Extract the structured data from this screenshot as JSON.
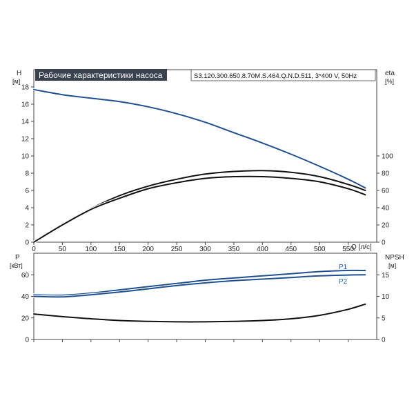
{
  "colors": {
    "curve_blue": "#1f4f8f",
    "curve_black": "#111111",
    "title_bg": "#3a4250",
    "frame": "#444444"
  },
  "chart_data": [
    {
      "type": "line",
      "title": "Рабочие характеристики насоса",
      "subtitle": "S3.120.300.650.8.70M.S.464.Q.N.D.511, 3*400 V, 50Hz",
      "xlabel": "Q [л/с]",
      "xlim": [
        0,
        600
      ],
      "x_ticks": [
        "0",
        "50",
        "100",
        "150",
        "200",
        "250",
        "300",
        "350",
        "400",
        "450",
        "500",
        "550"
      ],
      "ylabel_left": "H",
      "ylabel_left_unit": "[м]",
      "ylim_left": [
        0,
        20
      ],
      "y_ticks_left": [
        "0",
        "2",
        "4",
        "6",
        "8",
        "10",
        "12",
        "14",
        "16",
        "18"
      ],
      "ylabel_right": "eta",
      "ylabel_right_unit": "[%]",
      "ylim_right": [
        0,
        200
      ],
      "y_ticks_right": [
        "0",
        "20",
        "40",
        "60",
        "80",
        "100"
      ],
      "series": [
        {
          "axis": "left",
          "color": "#1f4f8f",
          "x": [
            0,
            50,
            100,
            150,
            200,
            250,
            300,
            350,
            400,
            450,
            500,
            550,
            580
          ],
          "values": [
            17.7,
            17.1,
            16.7,
            16.3,
            15.7,
            14.9,
            13.9,
            12.7,
            11.5,
            10.2,
            8.8,
            7.3,
            6.3
          ]
        },
        {
          "axis": "left",
          "color": "#111111",
          "x": [
            0,
            50,
            100,
            150,
            200,
            250,
            300,
            350,
            400,
            450,
            500,
            550,
            580
          ],
          "values": [
            0,
            2.1,
            3.9,
            5.4,
            6.5,
            7.3,
            7.9,
            8.2,
            8.3,
            8.1,
            7.6,
            6.7,
            6.0
          ]
        },
        {
          "axis": "left",
          "color": "#111111",
          "x": [
            0,
            50,
            100,
            150,
            200,
            250,
            300,
            350,
            400,
            450,
            500,
            550,
            580
          ],
          "values": [
            0,
            2.0,
            3.8,
            5.1,
            6.2,
            6.9,
            7.4,
            7.6,
            7.6,
            7.4,
            7.0,
            6.2,
            5.5
          ]
        }
      ]
    },
    {
      "type": "line",
      "xlim": [
        0,
        600
      ],
      "ylabel_left": "P",
      "ylabel_left_unit": "[кВт]",
      "ylim_left": [
        0,
        80
      ],
      "y_ticks_left": [
        "0",
        "20",
        "40",
        "60"
      ],
      "ylabel_right": "NPSH",
      "ylabel_right_unit": "[м]",
      "ylim_right": [
        0,
        20
      ],
      "y_ticks_right": [
        "0",
        "5",
        "10",
        "15"
      ],
      "series": [
        {
          "name": "P1",
          "axis": "left",
          "color": "#1f4f8f",
          "x": [
            0,
            50,
            100,
            150,
            200,
            250,
            300,
            350,
            400,
            450,
            500,
            550,
            580
          ],
          "values": [
            41.5,
            41,
            43,
            46,
            49,
            52,
            55,
            57,
            59,
            61,
            63,
            64,
            64
          ]
        },
        {
          "name": "P2",
          "axis": "left",
          "color": "#1f4f8f",
          "x": [
            0,
            50,
            100,
            150,
            200,
            250,
            300,
            350,
            400,
            450,
            500,
            550,
            580
          ],
          "values": [
            40,
            39.5,
            41.5,
            44,
            47,
            50,
            52.5,
            54.5,
            56,
            57.5,
            59,
            59.8,
            60
          ]
        },
        {
          "axis": "right",
          "color": "#111111",
          "x": [
            0,
            50,
            100,
            150,
            200,
            250,
            300,
            350,
            400,
            450,
            500,
            550,
            580
          ],
          "values": [
            5.9,
            5.3,
            4.8,
            4.4,
            4.2,
            4.1,
            4.1,
            4.2,
            4.4,
            4.8,
            5.6,
            7.0,
            8.2
          ]
        }
      ]
    }
  ]
}
